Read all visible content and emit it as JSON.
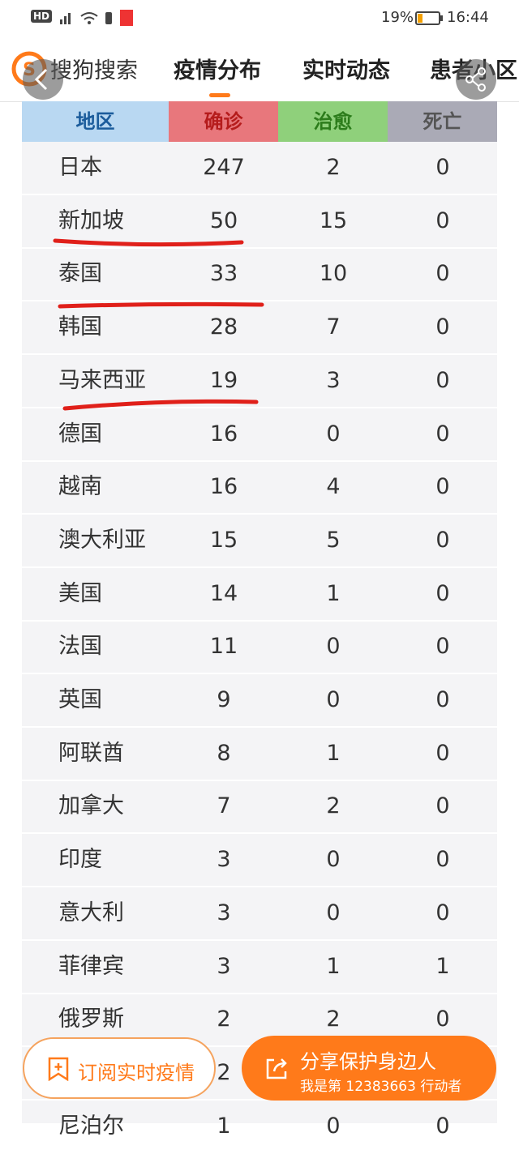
{
  "status_bar": {
    "left": "HD",
    "battery": "19%",
    "time": "16:44"
  },
  "nav": {
    "brand": "搜狗搜索",
    "tabs": [
      "疫情分布",
      "实时动态",
      "患者小区"
    ]
  },
  "table": {
    "headers": [
      "地区",
      "确诊",
      "治愈",
      "死亡"
    ],
    "rows": [
      [
        "日本",
        247,
        2,
        0
      ],
      [
        "新加坡",
        50,
        15,
        0
      ],
      [
        "泰国",
        33,
        10,
        0
      ],
      [
        "韩国",
        28,
        7,
        0
      ],
      [
        "马来西亚",
        19,
        3,
        0
      ],
      [
        "德国",
        16,
        0,
        0
      ],
      [
        "越南",
        16,
        4,
        0
      ],
      [
        "澳大利亚",
        15,
        5,
        0
      ],
      [
        "美国",
        14,
        1,
        0
      ],
      [
        "法国",
        11,
        0,
        0
      ],
      [
        "英国",
        9,
        0,
        0
      ],
      [
        "阿联酋",
        8,
        1,
        0
      ],
      [
        "加拿大",
        7,
        2,
        0
      ],
      [
        "印度",
        3,
        0,
        0
      ],
      [
        "意大利",
        3,
        0,
        0
      ],
      [
        "菲律宾",
        3,
        1,
        1
      ],
      [
        "俄罗斯",
        2,
        2,
        0
      ],
      [
        null,
        2,
        null,
        null
      ],
      [
        "尼泊尔",
        1,
        0,
        0
      ]
    ]
  },
  "buttons": {
    "subscribe": "订阅实时疫情",
    "share": "分享保护身边人",
    "share_sub": "我是第 12383663 行动者"
  }
}
